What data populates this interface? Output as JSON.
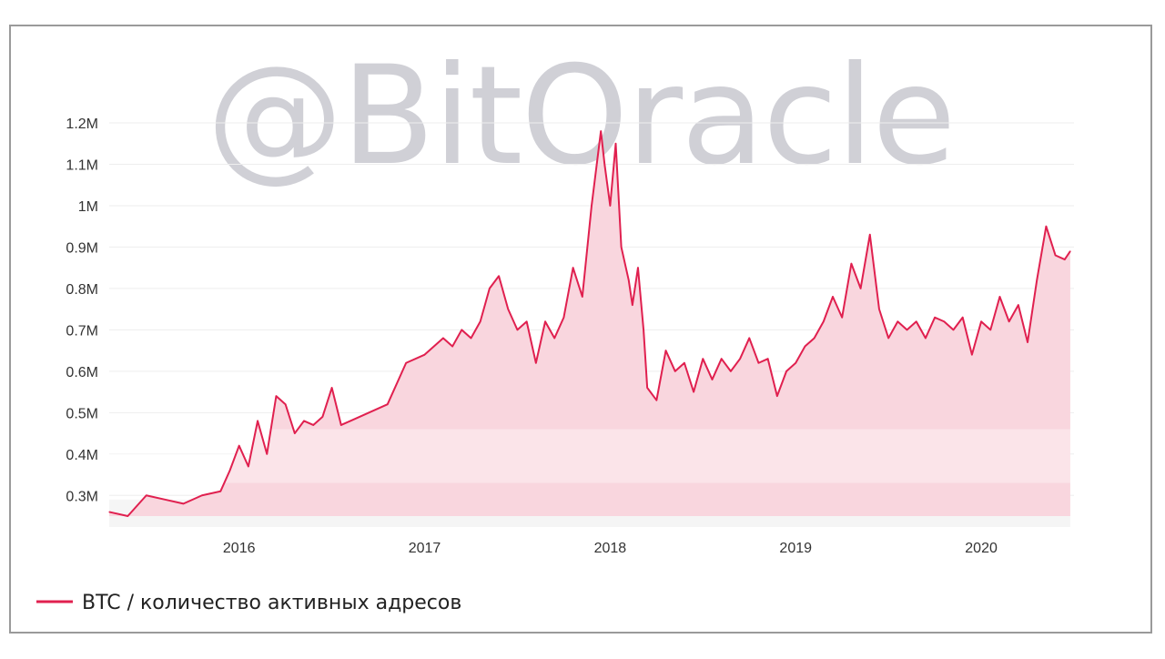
{
  "watermark": "@BitOracle",
  "chart_data": {
    "type": "area",
    "title": "",
    "xlabel": "",
    "ylabel": "",
    "x_ticks": [
      "2016",
      "2017",
      "2018",
      "2019",
      "2020"
    ],
    "y_ticks": [
      "0.3M",
      "0.4M",
      "0.5M",
      "0.6M",
      "0.7M",
      "0.8M",
      "0.9M",
      "1M",
      "1.1M",
      "1.2M"
    ],
    "ylim": [
      0.25,
      1.2
    ],
    "xlim": [
      2015.3,
      2020.5
    ],
    "grid": true,
    "legend_position": "bottom-left",
    "series": [
      {
        "name": "BTC / количество активных адресов",
        "color": "#e0204f",
        "x": [
          2015.3,
          2015.4,
          2015.5,
          2015.6,
          2015.7,
          2015.8,
          2015.9,
          2015.95,
          2016.0,
          2016.05,
          2016.1,
          2016.15,
          2016.2,
          2016.25,
          2016.3,
          2016.35,
          2016.4,
          2016.45,
          2016.5,
          2016.55,
          2016.6,
          2016.7,
          2016.8,
          2016.9,
          2017.0,
          2017.1,
          2017.15,
          2017.2,
          2017.25,
          2017.3,
          2017.35,
          2017.4,
          2017.45,
          2017.5,
          2017.55,
          2017.6,
          2017.65,
          2017.7,
          2017.75,
          2017.8,
          2017.85,
          2017.9,
          2017.95,
          2017.97,
          2018.0,
          2018.03,
          2018.06,
          2018.1,
          2018.12,
          2018.15,
          2018.18,
          2018.2,
          2018.25,
          2018.3,
          2018.35,
          2018.4,
          2018.45,
          2018.5,
          2018.55,
          2018.6,
          2018.65,
          2018.7,
          2018.75,
          2018.8,
          2018.85,
          2018.9,
          2018.95,
          2019.0,
          2019.05,
          2019.1,
          2019.15,
          2019.2,
          2019.25,
          2019.3,
          2019.35,
          2019.4,
          2019.45,
          2019.5,
          2019.55,
          2019.6,
          2019.65,
          2019.7,
          2019.75,
          2019.8,
          2019.85,
          2019.9,
          2019.95,
          2020.0,
          2020.05,
          2020.1,
          2020.15,
          2020.2,
          2020.25,
          2020.3,
          2020.35,
          2020.4,
          2020.45,
          2020.48
        ],
        "values": [
          0.26,
          0.25,
          0.3,
          0.29,
          0.28,
          0.3,
          0.31,
          0.36,
          0.42,
          0.37,
          0.48,
          0.4,
          0.54,
          0.52,
          0.45,
          0.48,
          0.47,
          0.49,
          0.56,
          0.47,
          0.48,
          0.5,
          0.52,
          0.62,
          0.64,
          0.68,
          0.66,
          0.7,
          0.68,
          0.72,
          0.8,
          0.83,
          0.75,
          0.7,
          0.72,
          0.62,
          0.72,
          0.68,
          0.73,
          0.85,
          0.78,
          1.0,
          1.18,
          1.1,
          1.0,
          1.15,
          0.9,
          0.82,
          0.76,
          0.85,
          0.7,
          0.56,
          0.53,
          0.65,
          0.6,
          0.62,
          0.55,
          0.63,
          0.58,
          0.63,
          0.6,
          0.63,
          0.68,
          0.62,
          0.63,
          0.54,
          0.6,
          0.62,
          0.66,
          0.68,
          0.72,
          0.78,
          0.73,
          0.86,
          0.8,
          0.93,
          0.75,
          0.68,
          0.72,
          0.7,
          0.72,
          0.68,
          0.73,
          0.72,
          0.7,
          0.73,
          0.64,
          0.72,
          0.7,
          0.78,
          0.72,
          0.76,
          0.67,
          0.82,
          0.95,
          0.88,
          0.87,
          0.89
        ]
      }
    ]
  }
}
